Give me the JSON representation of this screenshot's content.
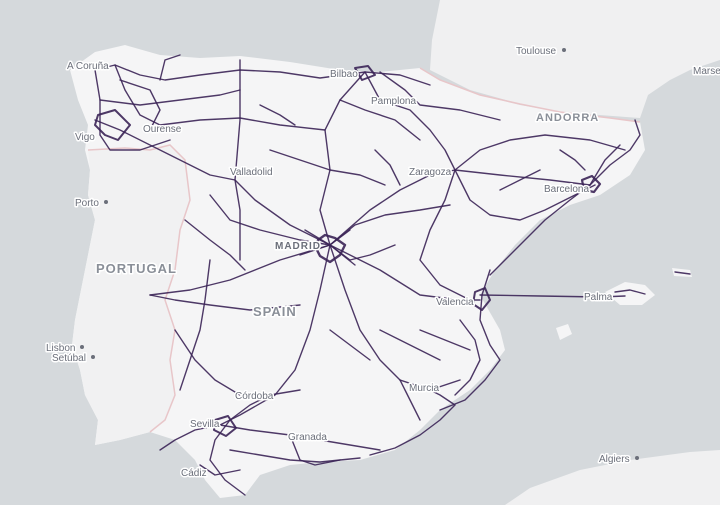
{
  "map": {
    "colors": {
      "sea": "#d5d9dc",
      "land": "#f5f5f6",
      "land_other": "#f0f0f1",
      "border": "#e8c6c9",
      "route": "#3b2356",
      "label": "#6b6f7a"
    },
    "countries": {
      "portugal": "PORTUGAL",
      "spain": "SPAIN",
      "andorra": "ANDORRA"
    },
    "cities": {
      "toulouse": "Toulouse",
      "marseille": "Marse",
      "a_coruna": "A Coruña",
      "bilbao": "Bilbao",
      "pamplona": "Pamplona",
      "ourense": "Ourense",
      "vigo": "Vigo",
      "valladolid": "Valladolid",
      "zaragoza": "Zaragoza",
      "barcelona": "Barcelona",
      "porto": "Porto",
      "madrid": "MADRID",
      "palma": "Palma",
      "valencia": "Valencia",
      "lisbon": "Lisbon",
      "setubal": "Setúbal",
      "murcia": "Murcia",
      "cordoba": "Córdoba",
      "sevilla": "Sevilla",
      "granada": "Granada",
      "cadiz": "Cádiz",
      "algiers": "Algiers"
    }
  }
}
